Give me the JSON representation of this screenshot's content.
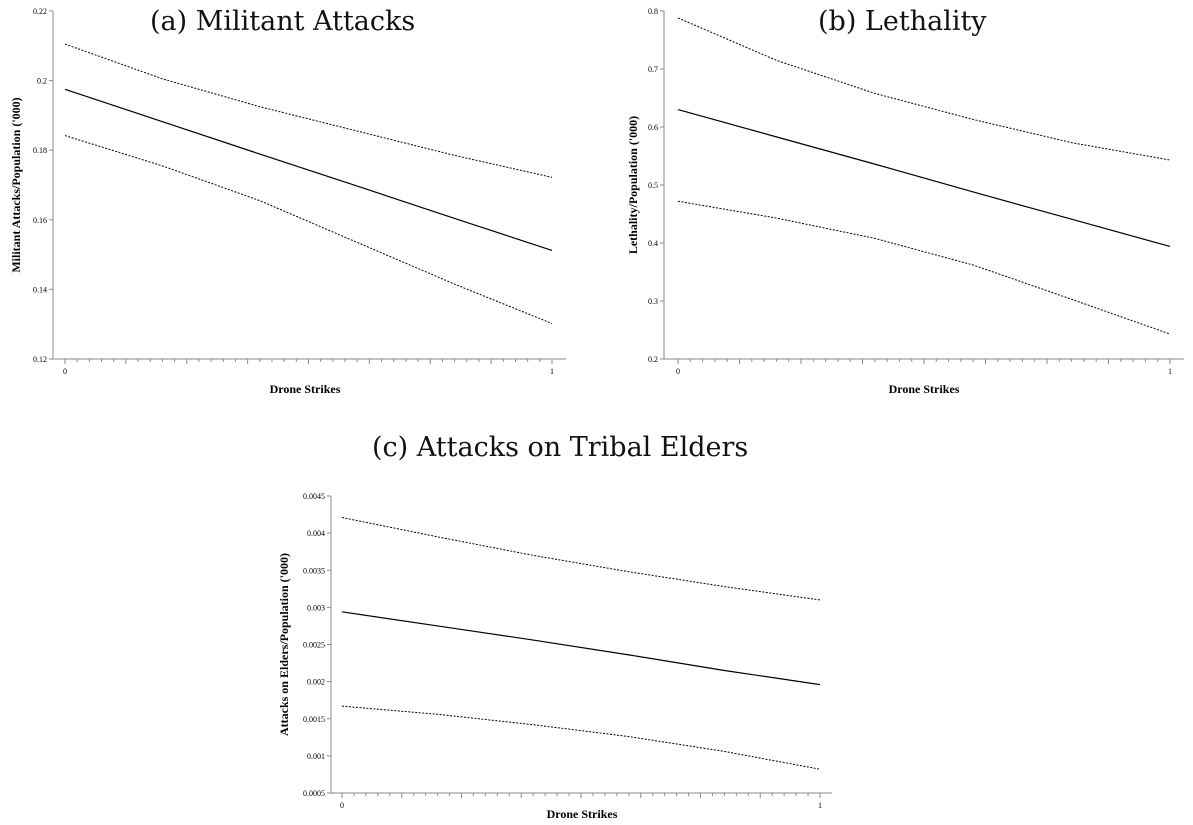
{
  "chart_data": [
    {
      "type": "line",
      "title": "(a) Militant Attacks",
      "xlabel": "Drone Strikes",
      "ylabel": "Militant Attacks/Population ('000)",
      "xlim": [
        0,
        1
      ],
      "ylim": [
        0.12,
        0.22
      ],
      "x_ticks": [
        "0",
        "1"
      ],
      "y_ticks": [
        "0.12",
        "0.14",
        "0.16",
        "0.18",
        "0.2",
        "0.22"
      ],
      "x": [
        0,
        0.2,
        0.4,
        0.6,
        0.8,
        1
      ],
      "series": [
        {
          "role": "upper",
          "values": [
            0.2105,
            0.2005,
            0.1925,
            0.1855,
            0.1785,
            0.1722
          ]
        },
        {
          "role": "estimate",
          "values": [
            0.1975,
            0.1882,
            0.1789,
            0.1697,
            0.1604,
            0.1512
          ]
        },
        {
          "role": "lower",
          "values": [
            0.1842,
            0.1755,
            0.1655,
            0.1535,
            0.1415,
            0.1302
          ]
        }
      ]
    },
    {
      "type": "line",
      "title": "(b) Lethality",
      "xlabel": "Drone Strikes",
      "ylabel": "Lethality/Population ('000)",
      "xlim": [
        0,
        1
      ],
      "ylim": [
        0.2,
        0.8
      ],
      "x_ticks": [
        "0",
        "1"
      ],
      "y_ticks": [
        "0.2",
        "0.3",
        "0.4",
        "0.5",
        "0.6",
        "0.7",
        "0.8"
      ],
      "x": [
        0,
        0.2,
        0.4,
        0.6,
        0.8,
        1
      ],
      "series": [
        {
          "role": "upper",
          "values": [
            0.788,
            0.715,
            0.658,
            0.613,
            0.573,
            0.543
          ]
        },
        {
          "role": "estimate",
          "values": [
            0.63,
            0.583,
            0.536,
            0.488,
            0.441,
            0.394
          ]
        },
        {
          "role": "lower",
          "values": [
            0.472,
            0.443,
            0.408,
            0.362,
            0.303,
            0.243
          ]
        }
      ]
    },
    {
      "type": "line",
      "title": "(c) Attacks on Tribal Elders",
      "xlabel": "Drone Strikes",
      "ylabel": "Attacks on Elders/Population ('000)",
      "xlim": [
        0,
        1
      ],
      "ylim": [
        0.0005,
        0.0045
      ],
      "x_ticks": [
        "0",
        "1"
      ],
      "y_ticks": [
        "0.0005",
        "0.001",
        "0.0015",
        "0.002",
        "0.0025",
        "0.003",
        "0.0035",
        "0.004",
        "0.0045"
      ],
      "x": [
        0,
        0.2,
        0.4,
        0.6,
        0.8,
        1
      ],
      "series": [
        {
          "role": "upper",
          "values": [
            0.00421,
            0.00395,
            0.0037,
            0.00348,
            0.00328,
            0.0031
          ]
        },
        {
          "role": "estimate",
          "values": [
            0.00294,
            0.00275,
            0.00256,
            0.00236,
            0.00215,
            0.00196
          ]
        },
        {
          "role": "lower",
          "values": [
            0.00167,
            0.00156,
            0.00142,
            0.00126,
            0.00106,
            0.00082
          ]
        }
      ]
    }
  ]
}
